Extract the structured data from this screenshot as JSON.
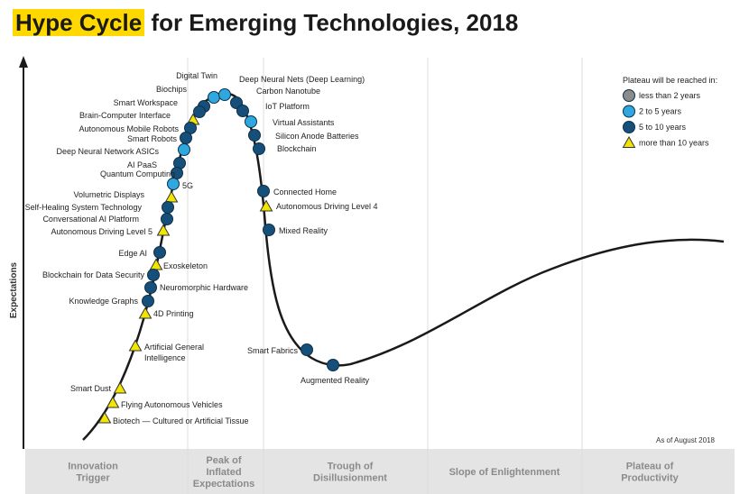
{
  "title": {
    "highlight": "Hype Cycle",
    "rest": " for Emerging Technologies, 2018"
  },
  "y_axis_label": "Expectations",
  "as_of": "As of August 2018",
  "legend": {
    "title": "Plateau will be reached in:",
    "items": [
      {
        "key": "lt2",
        "label": "less than 2 years",
        "shape": "circle",
        "color": "#8c8c8c"
      },
      {
        "key": "2to5",
        "label": "2 to 5 years",
        "shape": "circle",
        "color": "#2fa8e0"
      },
      {
        "key": "5to10",
        "label": "5 to 10 years",
        "shape": "circle",
        "color": "#16507a"
      },
      {
        "key": "gt10",
        "label": "more than 10 years",
        "shape": "triangle",
        "color": "#f2e500"
      }
    ]
  },
  "phases": [
    {
      "lines": [
        "Innovation",
        "Trigger"
      ]
    },
    {
      "lines": [
        "Peak of",
        "Inflated",
        "Expectations"
      ]
    },
    {
      "lines": [
        "Trough of",
        "Disillusionment"
      ]
    },
    {
      "lines": [
        "Slope of Enlightenment"
      ]
    },
    {
      "lines": [
        "Plateau of",
        "Productivity"
      ]
    }
  ],
  "colors": {
    "band": "#e4e4e4",
    "curve": "#1a1a1a",
    "title_highlight": "#ffd800"
  },
  "technologies": [
    {
      "name": "Digital Twin",
      "cat": "2to5"
    },
    {
      "name": "Deep Neural Nets (Deep Learning)",
      "cat": "2to5"
    },
    {
      "name": "Biochips",
      "cat": "5to10"
    },
    {
      "name": "Carbon Nanotube",
      "cat": "5to10"
    },
    {
      "name": "Smart Workspace",
      "cat": "5to10"
    },
    {
      "name": "IoT Platform",
      "cat": "5to10"
    },
    {
      "name": "Brain-Computer Interface",
      "cat": "gt10"
    },
    {
      "name": "Virtual Assistants",
      "cat": "2to5"
    },
    {
      "name": "Autonomous Mobile Robots",
      "cat": "5to10"
    },
    {
      "name": "Silicon Anode Batteries",
      "cat": "5to10"
    },
    {
      "name": "Smart Robots",
      "cat": "5to10"
    },
    {
      "name": "Blockchain",
      "cat": "5to10"
    },
    {
      "name": "Deep Neural Network ASICs",
      "cat": "2to5"
    },
    {
      "name": "AI PaaS",
      "cat": "5to10"
    },
    {
      "name": "Quantum Computing",
      "cat": "5to10"
    },
    {
      "name": "5G",
      "cat": "2to5"
    },
    {
      "name": "Volumetric Displays",
      "cat": "gt10"
    },
    {
      "name": "Connected Home",
      "cat": "5to10"
    },
    {
      "name": "Self-Healing System Technology",
      "cat": "5to10"
    },
    {
      "name": "Autonomous Driving Level 4",
      "cat": "gt10"
    },
    {
      "name": "Conversational AI Platform",
      "cat": "5to10"
    },
    {
      "name": "Autonomous Driving Level 5",
      "cat": "gt10"
    },
    {
      "name": "Mixed Reality",
      "cat": "5to10"
    },
    {
      "name": "Edge AI",
      "cat": "5to10"
    },
    {
      "name": "Exoskeleton",
      "cat": "gt10"
    },
    {
      "name": "Blockchain for Data Security",
      "cat": "5to10"
    },
    {
      "name": "Neuromorphic Hardware",
      "cat": "5to10"
    },
    {
      "name": "Knowledge Graphs",
      "cat": "5to10"
    },
    {
      "name": "4D Printing",
      "cat": "gt10"
    },
    {
      "name": "Artificial General Intelligence",
      "cat": "gt10"
    },
    {
      "name": "Smart Fabrics",
      "cat": "5to10"
    },
    {
      "name": "Augmented Reality",
      "cat": "5to10"
    },
    {
      "name": "Smart Dust",
      "cat": "gt10"
    },
    {
      "name": "Flying Autonomous Vehicles",
      "cat": "gt10"
    },
    {
      "name": "Biotech — Cultured or Artificial Tissue",
      "cat": "gt10"
    }
  ]
}
